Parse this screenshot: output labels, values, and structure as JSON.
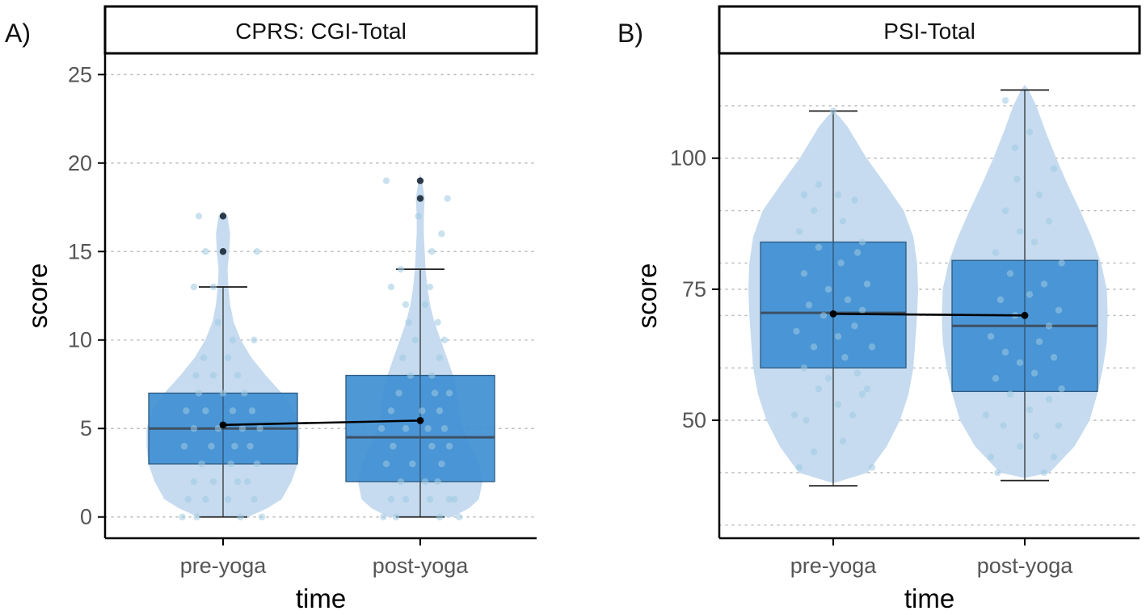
{
  "colors": {
    "violin": "#c6dbef",
    "box": "#3f8fd2",
    "box_edge": "#2b5a80",
    "median": "#3d5064",
    "jitter": "#9ecae1",
    "outlier": "#2b3a48",
    "mean": "#000000",
    "grid": "#bdbdbd"
  },
  "chart_data": [
    {
      "panel_tag": "A)",
      "type": "violin+box",
      "title": "CPRS: CGI-Total",
      "xlabel": "time",
      "ylabel": "score",
      "categories": [
        "pre-yoga",
        "post-yoga"
      ],
      "ylim": [
        -1.2,
        26.2
      ],
      "yticks": [
        0,
        5,
        10,
        15,
        20,
        25
      ],
      "minor_grid": [],
      "grid": "horizontal-dotted",
      "violins": [
        {
          "profile": [
            [
              0,
              0.28
            ],
            [
              0.5,
              0.5
            ],
            [
              1,
              0.66
            ],
            [
              2,
              0.77
            ],
            [
              3,
              0.84
            ],
            [
              4,
              0.86
            ],
            [
              5,
              0.86
            ],
            [
              6,
              0.8
            ],
            [
              7,
              0.66
            ],
            [
              8,
              0.48
            ],
            [
              9,
              0.32
            ],
            [
              10,
              0.2
            ],
            [
              11,
              0.12
            ],
            [
              12,
              0.08
            ],
            [
              13,
              0.06
            ],
            [
              14,
              0.05
            ],
            [
              15,
              0.07
            ],
            [
              16,
              0.08
            ],
            [
              17,
              0.05
            ],
            [
              17.3,
              0
            ]
          ]
        },
        {
          "profile": [
            [
              0,
              0.36
            ],
            [
              0.5,
              0.55
            ],
            [
              1,
              0.66
            ],
            [
              2,
              0.7
            ],
            [
              3,
              0.66
            ],
            [
              4,
              0.56
            ],
            [
              5,
              0.48
            ],
            [
              6,
              0.44
            ],
            [
              7,
              0.42
            ],
            [
              8,
              0.37
            ],
            [
              9,
              0.3
            ],
            [
              10,
              0.23
            ],
            [
              11,
              0.16
            ],
            [
              12,
              0.11
            ],
            [
              13,
              0.08
            ],
            [
              14,
              0.06
            ],
            [
              15,
              0.05
            ],
            [
              16,
              0.04
            ],
            [
              17,
              0.04
            ],
            [
              18,
              0.05
            ],
            [
              19,
              0.02
            ],
            [
              19.4,
              0
            ]
          ]
        }
      ],
      "boxes": [
        {
          "q1": 3,
          "median": 5,
          "q3": 7,
          "whisker_low": 0,
          "whisker_high": 13,
          "mean": 5.2,
          "outliers": [
            15,
            17
          ]
        },
        {
          "q1": 2,
          "median": 4.5,
          "q3": 8,
          "whisker_low": 0,
          "whisker_high": 14,
          "mean": 5.45,
          "outliers": [
            18,
            19
          ]
        }
      ],
      "jitter": [
        [
          [
            -0.42,
            0
          ],
          [
            -0.27,
            0
          ],
          [
            0.18,
            0
          ],
          [
            0.4,
            0
          ],
          [
            -0.18,
            1
          ],
          [
            0.05,
            1
          ],
          [
            -0.36,
            1
          ],
          [
            0.32,
            1
          ],
          [
            -0.1,
            2
          ],
          [
            0.15,
            2
          ],
          [
            0.25,
            2
          ],
          [
            -0.3,
            2
          ],
          [
            -0.22,
            3
          ],
          [
            0.08,
            3
          ],
          [
            0.35,
            3
          ],
          [
            -0.4,
            4
          ],
          [
            -0.12,
            4
          ],
          [
            0.12,
            4
          ],
          [
            0.28,
            4
          ],
          [
            -0.3,
            5
          ],
          [
            -0.05,
            5
          ],
          [
            0.2,
            5
          ],
          [
            0.38,
            5
          ],
          [
            -0.38,
            6
          ],
          [
            -0.18,
            6
          ],
          [
            0.1,
            6
          ],
          [
            0.3,
            6
          ],
          [
            -0.25,
            7
          ],
          [
            0,
            7
          ],
          [
            0.22,
            7
          ],
          [
            -0.1,
            8
          ],
          [
            0.15,
            8
          ],
          [
            -0.28,
            8
          ],
          [
            -0.2,
            9
          ],
          [
            0.05,
            9
          ],
          [
            0.1,
            10
          ],
          [
            0.32,
            10
          ],
          [
            -0.05,
            11
          ],
          [
            -0.3,
            13
          ],
          [
            -0.1,
            13
          ],
          [
            0.35,
            15
          ],
          [
            -0.25,
            17
          ],
          [
            -0.18,
            15
          ]
        ],
        [
          [
            -0.38,
            0
          ],
          [
            -0.25,
            0
          ],
          [
            0.2,
            0
          ],
          [
            0.4,
            0
          ],
          [
            -0.3,
            1
          ],
          [
            -0.15,
            1
          ],
          [
            0.1,
            1
          ],
          [
            0.3,
            1
          ],
          [
            0.35,
            1
          ],
          [
            -0.2,
            2
          ],
          [
            0.05,
            2
          ],
          [
            0.18,
            2
          ],
          [
            -0.35,
            3
          ],
          [
            -0.08,
            3
          ],
          [
            0.22,
            3
          ],
          [
            -0.28,
            4
          ],
          [
            0.12,
            4
          ],
          [
            0.3,
            4
          ],
          [
            -0.4,
            5
          ],
          [
            -0.15,
            5
          ],
          [
            0.08,
            5
          ],
          [
            0.25,
            5
          ],
          [
            -0.3,
            6
          ],
          [
            0.02,
            6
          ],
          [
            0.2,
            6
          ],
          [
            -0.22,
            7
          ],
          [
            0.15,
            7
          ],
          [
            0.3,
            7
          ],
          [
            -0.1,
            8
          ],
          [
            0.12,
            8
          ],
          [
            -0.18,
            9
          ],
          [
            0.2,
            9
          ],
          [
            -0.05,
            10
          ],
          [
            0.25,
            10
          ],
          [
            -0.12,
            11
          ],
          [
            0.18,
            11
          ],
          [
            -0.15,
            12
          ],
          [
            0.05,
            12
          ],
          [
            0.1,
            13
          ],
          [
            -0.3,
            13
          ],
          [
            -0.2,
            14
          ],
          [
            0.12,
            15
          ],
          [
            0.22,
            16
          ],
          [
            -0.02,
            17
          ],
          [
            -0.35,
            19
          ],
          [
            0.28,
            18
          ]
        ]
      ]
    },
    {
      "panel_tag": "B)",
      "type": "violin+box",
      "title": "PSI-Total",
      "xlabel": "time",
      "ylabel": "score",
      "categories": [
        "pre-yoga",
        "post-yoga"
      ],
      "ylim": [
        27.5,
        120
      ],
      "yticks": [
        50,
        75,
        100
      ],
      "minor_grid": [
        30,
        40,
        60,
        70,
        80,
        90,
        110
      ],
      "grid": "horizontal-dotted",
      "violins": [
        {
          "profile": [
            [
              38,
              0
            ],
            [
              40,
              0.36
            ],
            [
              45,
              0.56
            ],
            [
              50,
              0.7
            ],
            [
              55,
              0.79
            ],
            [
              60,
              0.84
            ],
            [
              65,
              0.86
            ],
            [
              70,
              0.88
            ],
            [
              75,
              0.89
            ],
            [
              80,
              0.88
            ],
            [
              85,
              0.84
            ],
            [
              90,
              0.74
            ],
            [
              95,
              0.55
            ],
            [
              100,
              0.35
            ],
            [
              103,
              0.25
            ],
            [
              106,
              0.15
            ],
            [
              108,
              0.06
            ],
            [
              109,
              0
            ]
          ]
        },
        {
          "profile": [
            [
              39,
              0
            ],
            [
              40,
              0.26
            ],
            [
              45,
              0.52
            ],
            [
              50,
              0.68
            ],
            [
              55,
              0.76
            ],
            [
              60,
              0.82
            ],
            [
              65,
              0.86
            ],
            [
              70,
              0.87
            ],
            [
              75,
              0.86
            ],
            [
              80,
              0.8
            ],
            [
              85,
              0.7
            ],
            [
              90,
              0.58
            ],
            [
              95,
              0.45
            ],
            [
              100,
              0.33
            ],
            [
              105,
              0.22
            ],
            [
              110,
              0.12
            ],
            [
              113,
              0.04
            ],
            [
              114,
              0
            ]
          ]
        }
      ],
      "boxes": [
        {
          "q1": 60,
          "median": 70.5,
          "q3": 84,
          "whisker_low": 37.5,
          "whisker_high": 109,
          "mean": 70.3,
          "outliers": []
        },
        {
          "q1": 55.5,
          "median": 68,
          "q3": 80.5,
          "whisker_low": 38.5,
          "whisker_high": 113,
          "mean": 70,
          "outliers": []
        }
      ],
      "jitter": [
        [
          [
            -0.35,
            41
          ],
          [
            0.4,
            41
          ],
          [
            -0.2,
            44
          ],
          [
            0.1,
            46
          ],
          [
            -0.28,
            50
          ],
          [
            0.2,
            51
          ],
          [
            -0.4,
            51
          ],
          [
            0.05,
            53
          ],
          [
            0.3,
            55
          ],
          [
            -0.15,
            56
          ],
          [
            0.35,
            56
          ],
          [
            -0.05,
            58
          ],
          [
            0.25,
            59
          ],
          [
            -0.3,
            60
          ],
          [
            0.12,
            62
          ],
          [
            -0.2,
            64
          ],
          [
            0.4,
            64
          ],
          [
            0.05,
            66
          ],
          [
            -0.38,
            67
          ],
          [
            0.22,
            68
          ],
          [
            -0.1,
            70
          ],
          [
            0.3,
            71
          ],
          [
            -0.25,
            72
          ],
          [
            0.15,
            73
          ],
          [
            -0.05,
            75
          ],
          [
            0.35,
            76
          ],
          [
            -0.3,
            78
          ],
          [
            0.08,
            80
          ],
          [
            0.25,
            82
          ],
          [
            -0.15,
            83
          ],
          [
            0.3,
            84
          ],
          [
            -0.35,
            86
          ],
          [
            0.1,
            88
          ],
          [
            -0.2,
            90
          ],
          [
            0.22,
            92
          ],
          [
            -0.3,
            93
          ],
          [
            0.05,
            93
          ],
          [
            -0.15,
            95
          ],
          [
            0,
            109
          ]
        ],
        [
          [
            -0.28,
            40
          ],
          [
            0.2,
            40
          ],
          [
            -0.35,
            43
          ],
          [
            0.3,
            43
          ],
          [
            -0.05,
            45
          ],
          [
            0.12,
            47
          ],
          [
            -0.22,
            49
          ],
          [
            0.35,
            49
          ],
          [
            -0.4,
            51
          ],
          [
            0.05,
            52
          ],
          [
            0.25,
            54
          ],
          [
            -0.15,
            55
          ],
          [
            0.38,
            56
          ],
          [
            -0.3,
            58
          ],
          [
            0.1,
            59
          ],
          [
            -0.05,
            61
          ],
          [
            0.3,
            62
          ],
          [
            -0.2,
            63
          ],
          [
            0.15,
            65
          ],
          [
            -0.35,
            66
          ],
          [
            0.25,
            68
          ],
          [
            -0.1,
            70
          ],
          [
            0.35,
            71
          ],
          [
            -0.25,
            73
          ],
          [
            0.05,
            74
          ],
          [
            0.2,
            76
          ],
          [
            -0.15,
            78
          ],
          [
            0.38,
            80
          ],
          [
            -0.3,
            82
          ],
          [
            0.1,
            84
          ],
          [
            -0.05,
            86
          ],
          [
            0.25,
            88
          ],
          [
            -0.2,
            90
          ],
          [
            0.15,
            93
          ],
          [
            -0.08,
            96
          ],
          [
            0.3,
            98
          ],
          [
            -0.1,
            102
          ],
          [
            0.05,
            105
          ],
          [
            -0.2,
            111
          ]
        ]
      ]
    }
  ]
}
